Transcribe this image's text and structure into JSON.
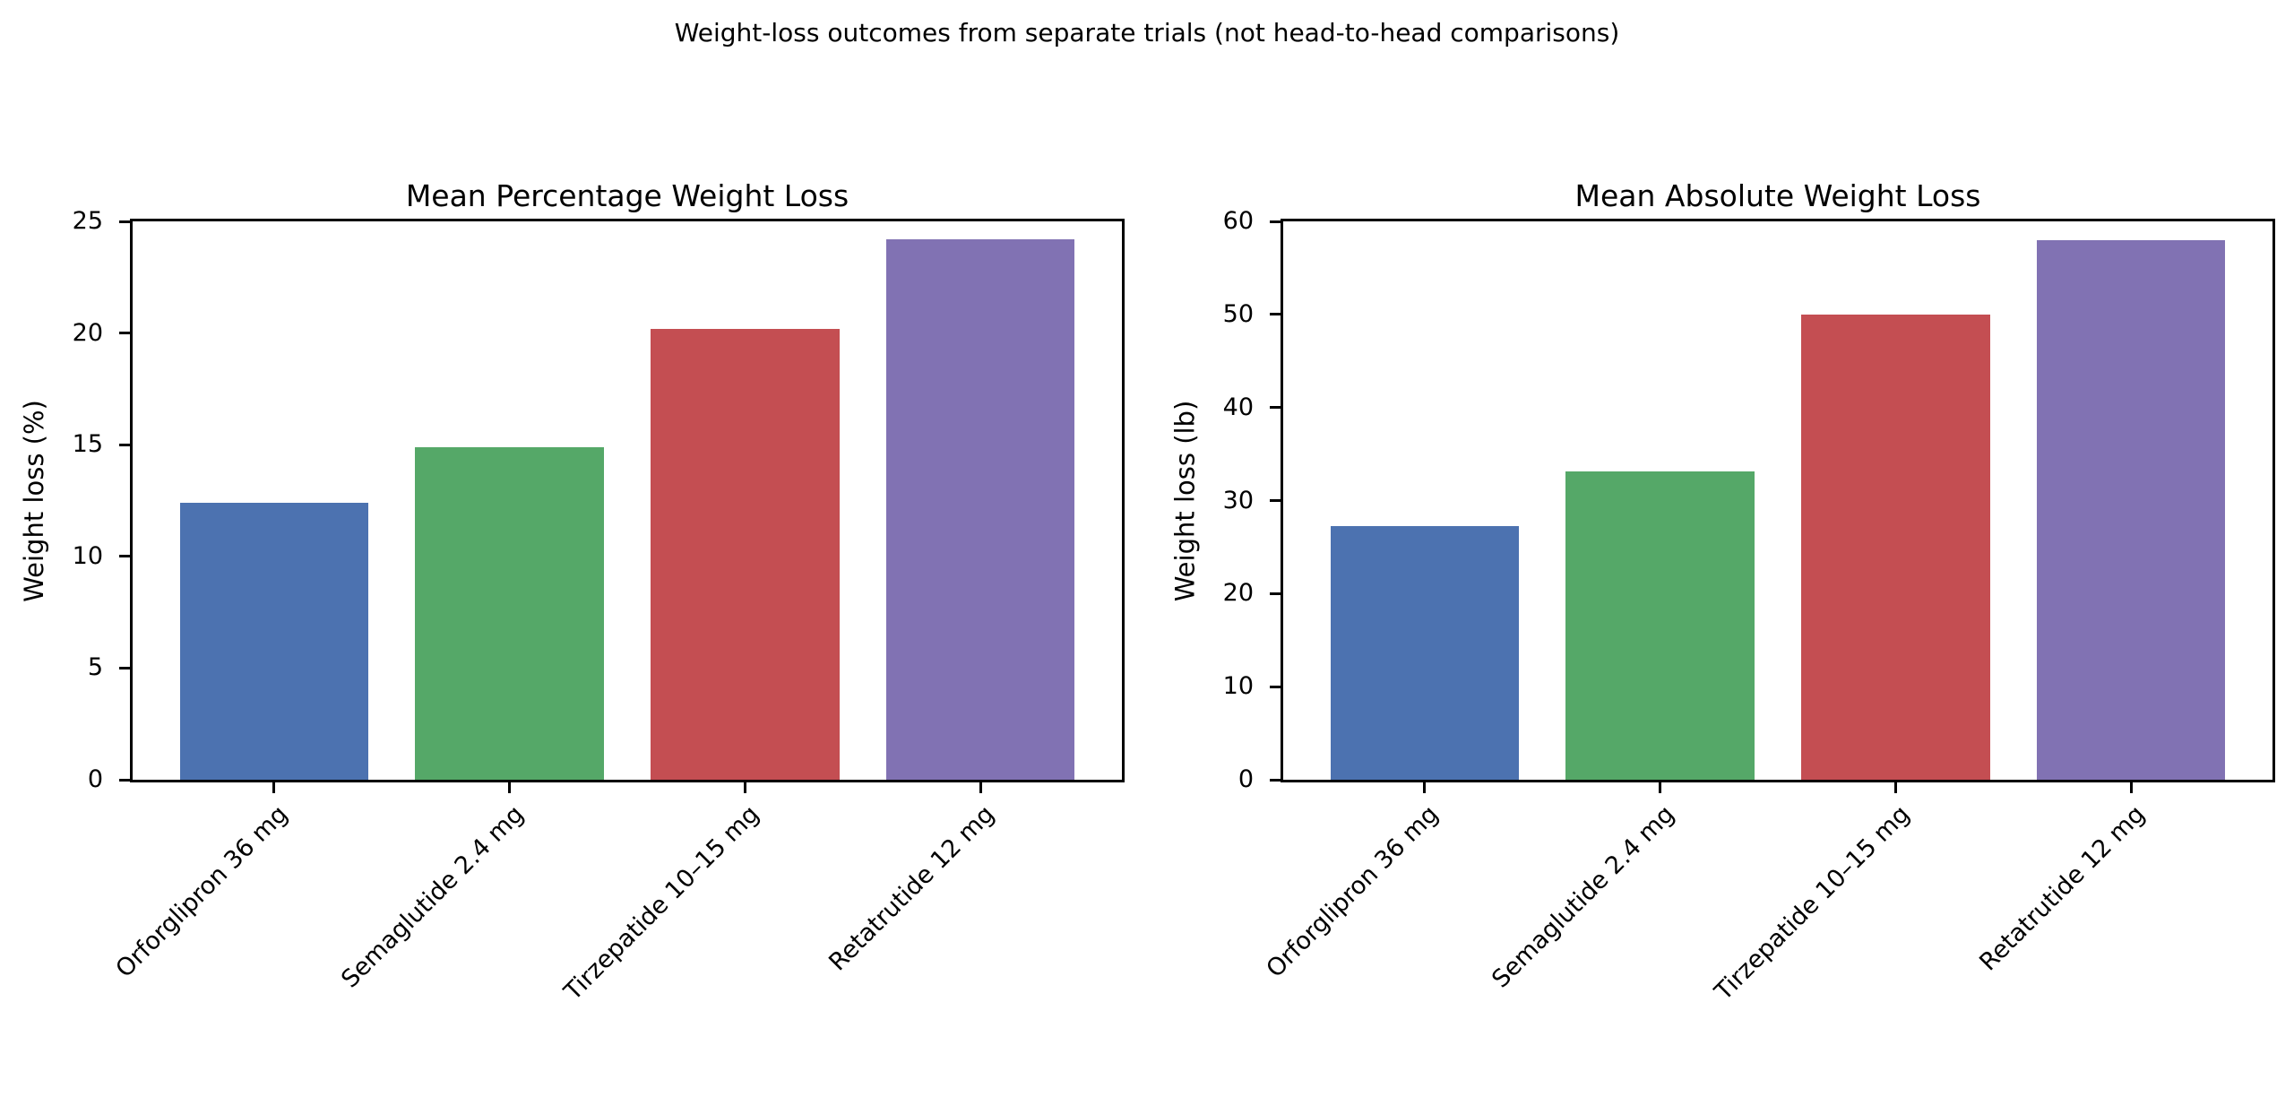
{
  "suptitle": "Weight-loss outcomes from separate trials (not head-to-head comparisons)",
  "palette": [
    "#4C72B0",
    "#55A868",
    "#C44E52",
    "#8172B3"
  ],
  "chart_data": [
    {
      "type": "bar",
      "title": "Mean Percentage Weight Loss",
      "ylabel": "Weight loss (%)",
      "xlabel": "",
      "categories": [
        "Orforglipron 36 mg",
        "Semaglutide 2.4 mg",
        "Tirzepatide 10–15 mg",
        "Retatrutide 12 mg"
      ],
      "values": [
        12.4,
        14.9,
        20.2,
        24.2
      ],
      "bar_colors": [
        "#4C72B0",
        "#55A868",
        "#C44E52",
        "#8172B3"
      ],
      "ylim": [
        0,
        25
      ],
      "yticks": [
        0,
        5,
        10,
        15,
        20,
        25
      ],
      "grid": false,
      "legend": null,
      "x_tick_rotation_deg": 45
    },
    {
      "type": "bar",
      "title": "Mean Absolute Weight Loss",
      "ylabel": "Weight loss (lb)",
      "xlabel": "",
      "categories": [
        "Orforglipron 36 mg",
        "Semaglutide 2.4 mg",
        "Tirzepatide 10–15 mg",
        "Retatrutide 12 mg"
      ],
      "values": [
        27.3,
        33.1,
        50,
        58
      ],
      "bar_colors": [
        "#4C72B0",
        "#55A868",
        "#C44E52",
        "#8172B3"
      ],
      "ylim": [
        0,
        60
      ],
      "yticks": [
        0,
        10,
        20,
        30,
        40,
        50,
        60
      ],
      "grid": false,
      "legend": null,
      "x_tick_rotation_deg": 45
    }
  ]
}
